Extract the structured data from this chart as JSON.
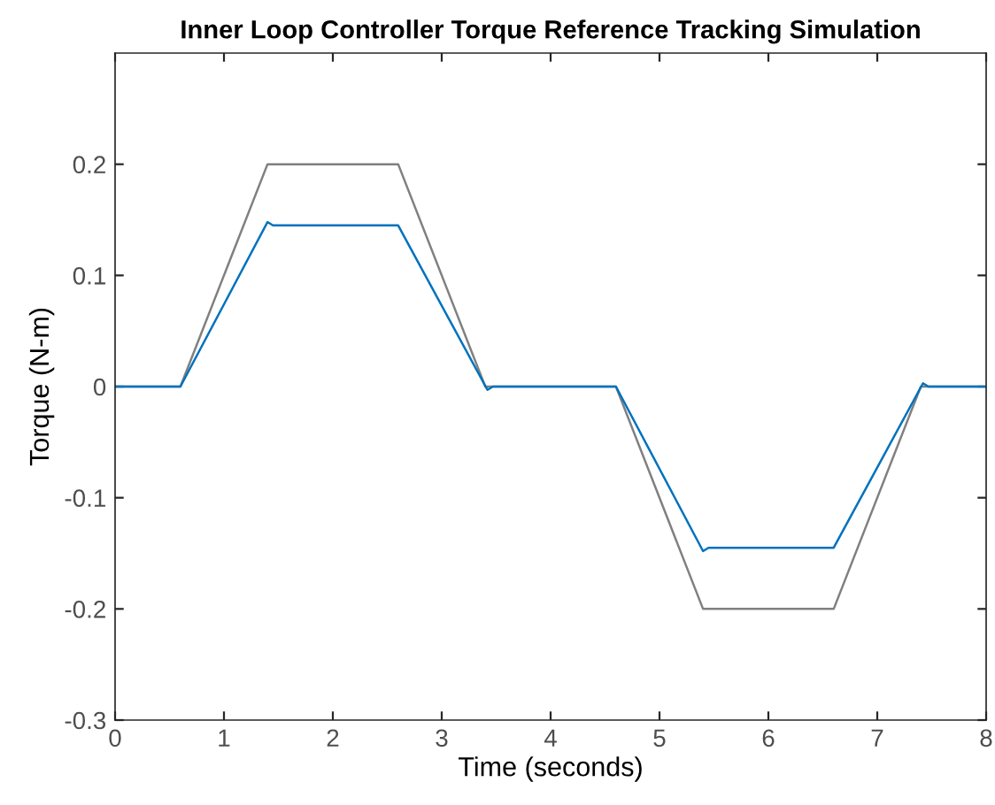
{
  "chart_data": {
    "type": "line",
    "title": "Inner Loop Controller Torque Reference Tracking Simulation",
    "xlabel": "Time (seconds)",
    "ylabel": "Torque (N-m)",
    "series": [
      {
        "color": "#808080",
        "x": [
          0,
          0.6,
          1.4,
          2.6,
          3.4,
          4.6,
          5.4,
          6.6,
          7.4,
          8
        ],
        "values": [
          0,
          0,
          0.2,
          0.2,
          0,
          0,
          -0.2,
          -0.2,
          0,
          0
        ]
      },
      {
        "color": "#0072bd",
        "x": [
          0,
          0.6,
          1.4,
          1.45,
          2.6,
          3.42,
          3.47,
          4.6,
          5.4,
          5.45,
          6.6,
          7.42,
          7.47,
          8
        ],
        "values": [
          0,
          0,
          0.148,
          0.145,
          0.145,
          -0.003,
          0,
          0,
          -0.148,
          -0.145,
          -0.145,
          0.003,
          0,
          0
        ]
      }
    ],
    "xlim": [
      0,
      8
    ],
    "xticks": [
      0,
      1,
      2,
      3,
      4,
      5,
      6,
      7,
      8
    ],
    "ylim": [
      -0.3,
      0.3
    ],
    "yticks": [
      -0.3,
      -0.2,
      -0.1,
      0,
      0.1,
      0.2
    ],
    "grid": false,
    "legend": false,
    "marker": "none",
    "line_style": "solid"
  }
}
